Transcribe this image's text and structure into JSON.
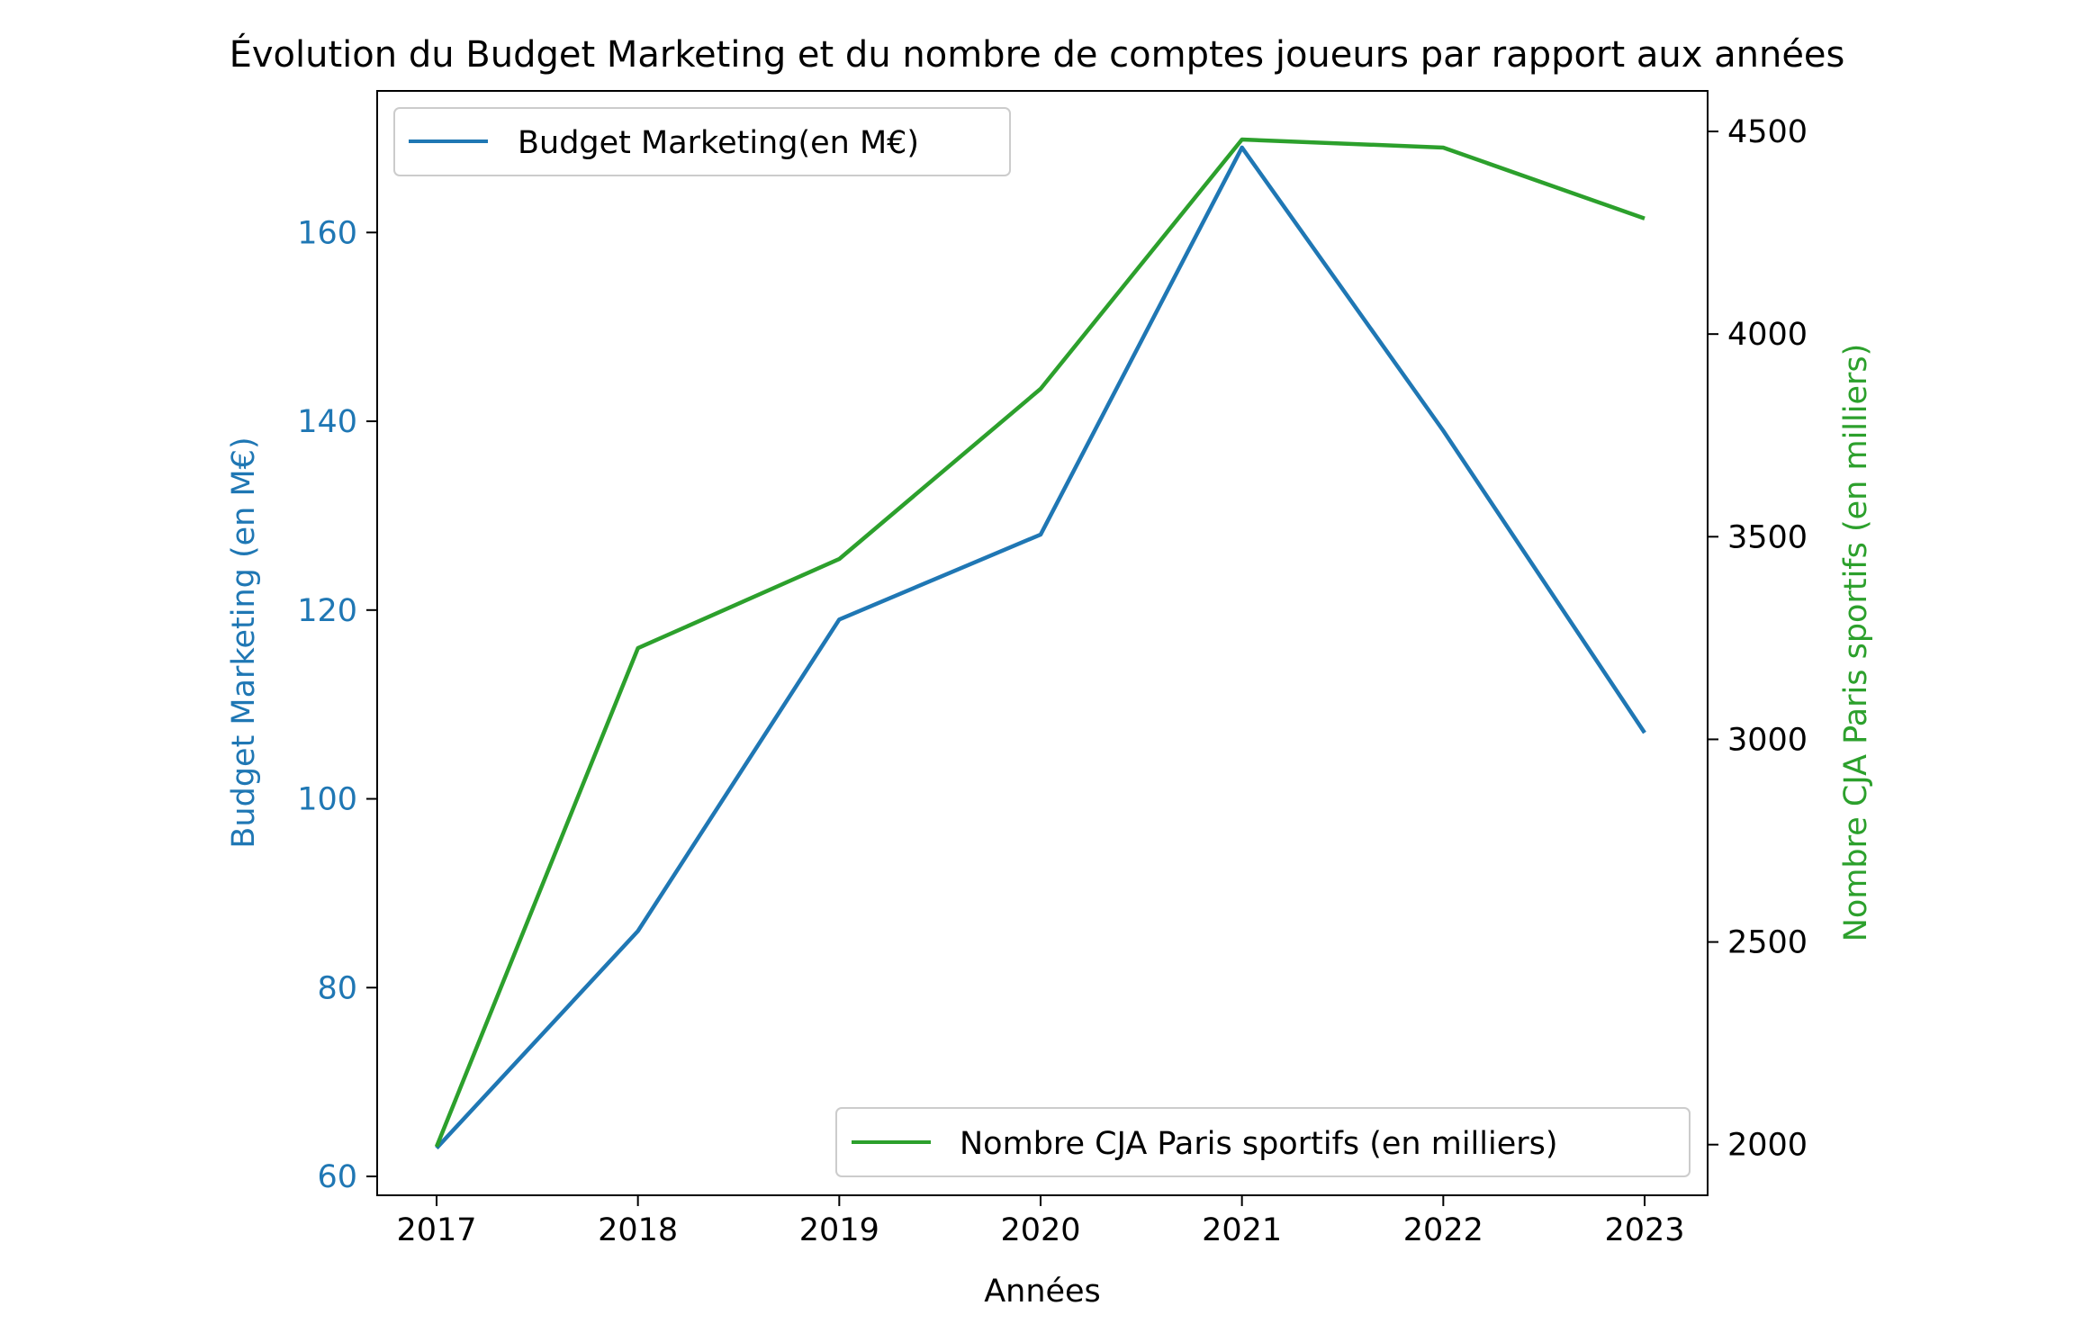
{
  "chart_data": {
    "type": "line",
    "title": "Évolution du Budget Marketing et du nombre de comptes joueurs par rapport aux années",
    "xlabel": "Années",
    "x": [
      2017,
      2018,
      2019,
      2020,
      2021,
      2022,
      2023
    ],
    "y_left": {
      "label": "Budget Marketing (en M€)",
      "color": "#1f77b4",
      "ylim": [
        58,
        175
      ],
      "ticks": [
        60,
        80,
        100,
        120,
        140,
        160
      ]
    },
    "y_right": {
      "label": "Nombre CJA Paris sportifs (en milliers)",
      "label_color": "#2ca02c",
      "ylim": [
        1875,
        4600
      ],
      "ticks": [
        2000,
        2500,
        3000,
        3500,
        4000,
        4500
      ]
    },
    "series": [
      {
        "name": "Budget Marketing(en M€)",
        "axis": "left",
        "color": "#1f77b4",
        "values": [
          63,
          86,
          119,
          128,
          169,
          139,
          107
        ],
        "legend": "upper-left"
      },
      {
        "name": "Nombre CJA Paris sportifs (en milliers)",
        "axis": "right",
        "color": "#2ca02c",
        "values": [
          1995,
          3225,
          3445,
          3865,
          4480,
          4460,
          4285
        ],
        "legend": "lower-right"
      }
    ],
    "grid": false
  }
}
